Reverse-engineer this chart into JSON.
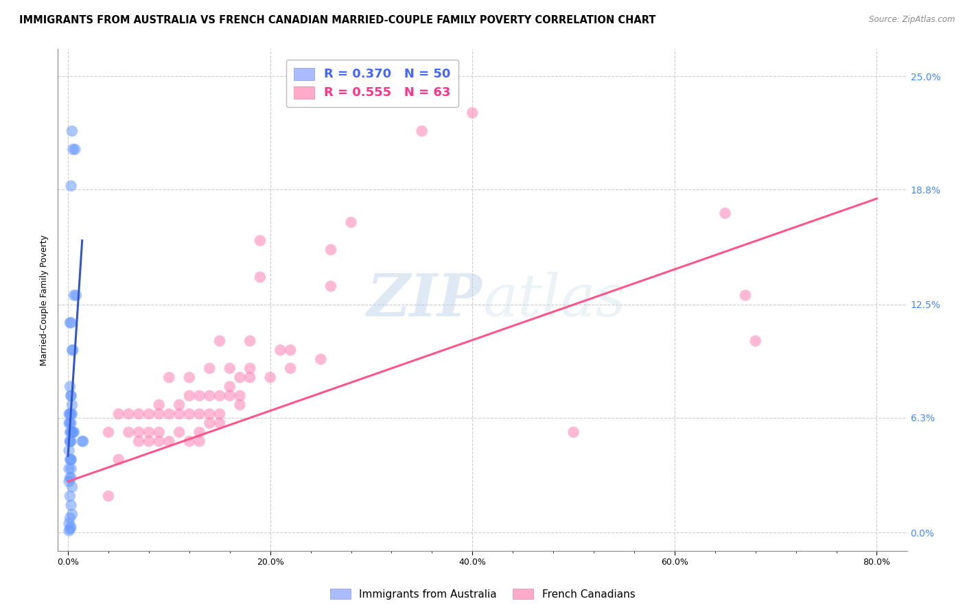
{
  "title": "IMMIGRANTS FROM AUSTRALIA VS FRENCH CANADIAN MARRIED-COUPLE FAMILY POVERTY CORRELATION CHART",
  "source": "Source: ZipAtlas.com",
  "xlabel_ticks": [
    "0.0%",
    "",
    "",
    "",
    "",
    "20.0%",
    "",
    "",
    "",
    "",
    "40.0%",
    "",
    "",
    "",
    "",
    "60.0%",
    "",
    "",
    "",
    "",
    "80.0%"
  ],
  "xlabel_tick_vals": [
    0.0,
    0.04,
    0.08,
    0.12,
    0.16,
    0.2,
    0.24,
    0.28,
    0.32,
    0.36,
    0.4,
    0.44,
    0.48,
    0.52,
    0.56,
    0.6,
    0.64,
    0.68,
    0.72,
    0.76,
    0.8
  ],
  "xlabel_major_ticks": [
    0.0,
    0.2,
    0.4,
    0.6,
    0.8
  ],
  "xlabel_major_labels": [
    "0.0%",
    "20.0%",
    "40.0%",
    "60.0%",
    "80.0%"
  ],
  "ylabel": "Married-Couple Family Poverty",
  "ylabel_ticks": [
    "0.0%",
    "6.3%",
    "12.5%",
    "18.8%",
    "25.0%"
  ],
  "ylabel_tick_vals": [
    0.0,
    0.063,
    0.125,
    0.188,
    0.25
  ],
  "xlim": [
    -0.01,
    0.83
  ],
  "ylim": [
    -0.01,
    0.265
  ],
  "watermark_zip": "ZIP",
  "watermark_atlas": "atlas",
  "blue_scatter_x": [
    0.004,
    0.005,
    0.007,
    0.003,
    0.006,
    0.008,
    0.002,
    0.003,
    0.004,
    0.005,
    0.002,
    0.003,
    0.004,
    0.003,
    0.001,
    0.002,
    0.003,
    0.004,
    0.002,
    0.001,
    0.003,
    0.002,
    0.004,
    0.003,
    0.005,
    0.006,
    0.004,
    0.003,
    0.002,
    0.015,
    0.014,
    0.002,
    0.001,
    0.003,
    0.003,
    0.002,
    0.001,
    0.003,
    0.003,
    0.002,
    0.001,
    0.004,
    0.002,
    0.003,
    0.004,
    0.002,
    0.001,
    0.003,
    0.002,
    0.001
  ],
  "blue_scatter_y": [
    0.22,
    0.21,
    0.21,
    0.19,
    0.13,
    0.13,
    0.115,
    0.115,
    0.1,
    0.1,
    0.08,
    0.075,
    0.07,
    0.075,
    0.065,
    0.065,
    0.065,
    0.065,
    0.06,
    0.06,
    0.06,
    0.055,
    0.055,
    0.055,
    0.055,
    0.055,
    0.055,
    0.05,
    0.05,
    0.05,
    0.05,
    0.05,
    0.045,
    0.04,
    0.04,
    0.04,
    0.035,
    0.035,
    0.03,
    0.03,
    0.028,
    0.025,
    0.02,
    0.015,
    0.01,
    0.008,
    0.005,
    0.003,
    0.002,
    0.001
  ],
  "pink_scatter_x": [
    0.5,
    0.35,
    0.28,
    0.26,
    0.26,
    0.25,
    0.22,
    0.22,
    0.21,
    0.2,
    0.19,
    0.19,
    0.18,
    0.18,
    0.18,
    0.17,
    0.17,
    0.17,
    0.16,
    0.16,
    0.16,
    0.15,
    0.15,
    0.15,
    0.15,
    0.14,
    0.14,
    0.14,
    0.14,
    0.13,
    0.13,
    0.13,
    0.13,
    0.12,
    0.12,
    0.12,
    0.12,
    0.11,
    0.11,
    0.11,
    0.1,
    0.1,
    0.1,
    0.09,
    0.09,
    0.09,
    0.09,
    0.08,
    0.08,
    0.08,
    0.07,
    0.07,
    0.07,
    0.06,
    0.06,
    0.05,
    0.05,
    0.04,
    0.04,
    0.65,
    0.68,
    0.67,
    0.4
  ],
  "pink_scatter_y": [
    0.055,
    0.22,
    0.17,
    0.155,
    0.135,
    0.095,
    0.1,
    0.09,
    0.1,
    0.085,
    0.16,
    0.14,
    0.105,
    0.09,
    0.085,
    0.085,
    0.075,
    0.07,
    0.09,
    0.08,
    0.075,
    0.105,
    0.075,
    0.065,
    0.06,
    0.09,
    0.075,
    0.065,
    0.06,
    0.075,
    0.065,
    0.055,
    0.05,
    0.085,
    0.075,
    0.065,
    0.05,
    0.07,
    0.065,
    0.055,
    0.085,
    0.065,
    0.05,
    0.07,
    0.065,
    0.055,
    0.05,
    0.065,
    0.055,
    0.05,
    0.065,
    0.055,
    0.05,
    0.065,
    0.055,
    0.065,
    0.04,
    0.055,
    0.02,
    0.175,
    0.105,
    0.13,
    0.23
  ],
  "blue_line_x": [
    0.0,
    0.014
  ],
  "blue_line_y": [
    0.042,
    0.16
  ],
  "pink_line_x": [
    0.0,
    0.8
  ],
  "pink_line_y": [
    0.028,
    0.183
  ],
  "blue_color": "#6699ff",
  "pink_color": "#ff80b3",
  "blue_line_color": "#3355cc",
  "pink_line_color": "#ff5588",
  "grid_color": "#cccccc",
  "grid_linestyle": "--",
  "background_color": "#ffffff",
  "title_fontsize": 10.5,
  "source_fontsize": 8.5,
  "axis_label_fontsize": 9,
  "tick_fontsize": 9,
  "legend_fontsize": 12
}
